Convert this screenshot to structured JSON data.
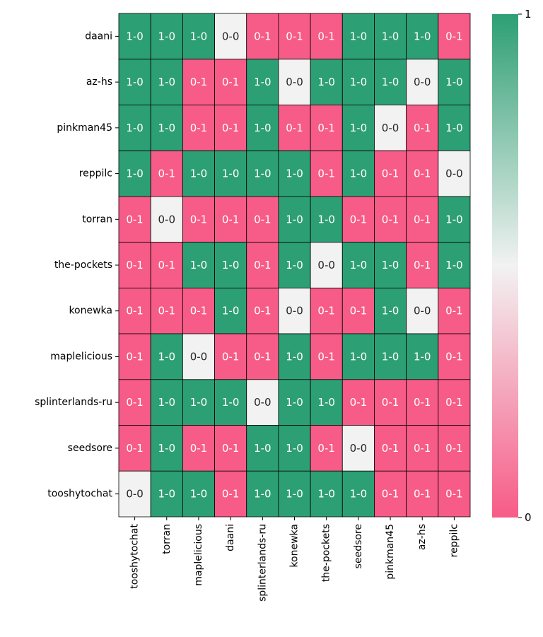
{
  "chart_data": {
    "type": "heatmap",
    "title": "",
    "xlabel": "",
    "ylabel": "",
    "rows": [
      "daani",
      "az-hs",
      "pinkman45",
      "reppilc",
      "torran",
      "the-pockets",
      "konewka",
      "maplelicious",
      "splinterlands-ru",
      "seedsore",
      "tooshytochat"
    ],
    "columns": [
      "tooshytochat",
      "torran",
      "maplelicious",
      "daani",
      "splinterlands-ru",
      "konewka",
      "the-pockets",
      "seedsore",
      "pinkman45",
      "az-hs",
      "reppilc"
    ],
    "values": [
      [
        1,
        1,
        1,
        0.5,
        0,
        0,
        0,
        1,
        1,
        1,
        0
      ],
      [
        1,
        1,
        0,
        0,
        1,
        0.5,
        1,
        1,
        1,
        0.5,
        1
      ],
      [
        1,
        1,
        0,
        0,
        1,
        0,
        0,
        1,
        0.5,
        0,
        1
      ],
      [
        1,
        0,
        1,
        1,
        1,
        1,
        0,
        1,
        0,
        0,
        0.5
      ],
      [
        0,
        0.5,
        0,
        0,
        0,
        1,
        1,
        0,
        0,
        0,
        1
      ],
      [
        0,
        0,
        1,
        1,
        0,
        1,
        0.5,
        1,
        1,
        0,
        1
      ],
      [
        0,
        0,
        0,
        1,
        0,
        0.5,
        0,
        0,
        1,
        0.5,
        0
      ],
      [
        0,
        1,
        0.5,
        0,
        0,
        1,
        0,
        1,
        1,
        1,
        0
      ],
      [
        0,
        1,
        1,
        1,
        0.5,
        1,
        1,
        0,
        0,
        0,
        0
      ],
      [
        0,
        1,
        0,
        0,
        1,
        1,
        0,
        0.5,
        0,
        0,
        0
      ],
      [
        0.5,
        1,
        1,
        0,
        1,
        1,
        1,
        1,
        0,
        0,
        0
      ]
    ],
    "annotations": [
      [
        "1-0",
        "1-0",
        "1-0",
        "0-0",
        "0-1",
        "0-1",
        "0-1",
        "1-0",
        "1-0",
        "1-0",
        "0-1"
      ],
      [
        "1-0",
        "1-0",
        "0-1",
        "0-1",
        "1-0",
        "0-0",
        "1-0",
        "1-0",
        "1-0",
        "0-0",
        "1-0"
      ],
      [
        "1-0",
        "1-0",
        "0-1",
        "0-1",
        "1-0",
        "0-1",
        "0-1",
        "1-0",
        "0-0",
        "0-1",
        "1-0"
      ],
      [
        "1-0",
        "0-1",
        "1-0",
        "1-0",
        "1-0",
        "1-0",
        "0-1",
        "1-0",
        "0-1",
        "0-1",
        "0-0"
      ],
      [
        "0-1",
        "0-0",
        "0-1",
        "0-1",
        "0-1",
        "1-0",
        "1-0",
        "0-1",
        "0-1",
        "0-1",
        "1-0"
      ],
      [
        "0-1",
        "0-1",
        "1-0",
        "1-0",
        "0-1",
        "1-0",
        "0-0",
        "1-0",
        "1-0",
        "0-1",
        "1-0"
      ],
      [
        "0-1",
        "0-1",
        "0-1",
        "1-0",
        "0-1",
        "0-0",
        "0-1",
        "0-1",
        "1-0",
        "0-0",
        "0-1"
      ],
      [
        "0-1",
        "1-0",
        "0-0",
        "0-1",
        "0-1",
        "1-0",
        "0-1",
        "1-0",
        "1-0",
        "1-0",
        "0-1"
      ],
      [
        "0-1",
        "1-0",
        "1-0",
        "1-0",
        "0-0",
        "1-0",
        "1-0",
        "0-1",
        "0-1",
        "0-1",
        "0-1"
      ],
      [
        "0-1",
        "1-0",
        "0-1",
        "0-1",
        "1-0",
        "1-0",
        "0-1",
        "0-0",
        "0-1",
        "0-1",
        "0-1"
      ],
      [
        "0-0",
        "1-0",
        "1-0",
        "0-1",
        "1-0",
        "1-0",
        "1-0",
        "1-0",
        "0-1",
        "0-1",
        "0-1"
      ]
    ],
    "colorbar": {
      "min": 0,
      "max": 1,
      "ticks": [
        "0",
        "1"
      ]
    },
    "colors": {
      "low": "#f75b87",
      "mid": "#f2f2f2",
      "high": "#2d9f74"
    }
  }
}
